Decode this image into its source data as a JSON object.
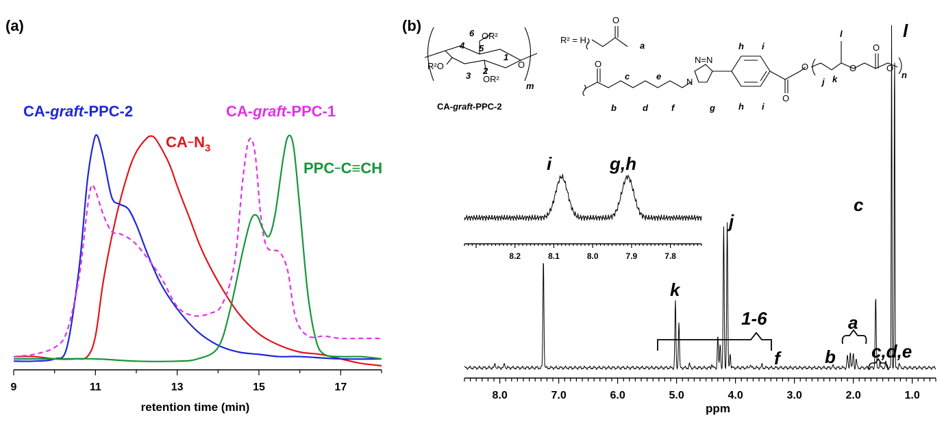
{
  "panels": {
    "a": "(a)",
    "b": "(b)"
  },
  "chart_data": [
    {
      "type": "line",
      "panel": "(a)",
      "xlabel": "retention time (min)",
      "ylabel": "",
      "xlim": [
        9,
        18
      ],
      "xticks": [
        9,
        11,
        13,
        15,
        17
      ],
      "series": [
        {
          "name": "CA-N3",
          "label_parts": [
            "CA",
            "−",
            "N",
            "3"
          ],
          "color": "#e0151b",
          "dash": "none",
          "x": [
            9.0,
            9.5,
            10.0,
            10.5,
            10.8,
            11.0,
            11.2,
            11.5,
            11.8,
            12.0,
            12.2,
            12.35,
            12.5,
            12.8,
            13.0,
            13.3,
            13.6,
            14.0,
            14.5,
            15.0,
            15.5,
            16.0,
            16.5,
            17.0,
            17.5,
            18.0
          ],
          "y": [
            0.01,
            0.01,
            0.0,
            0.0,
            0.01,
            0.1,
            0.35,
            0.62,
            0.82,
            0.91,
            0.96,
            0.98,
            0.96,
            0.86,
            0.76,
            0.62,
            0.48,
            0.34,
            0.2,
            0.11,
            0.06,
            0.03,
            0.02,
            0.0,
            -0.02,
            -0.03
          ]
        },
        {
          "name": "CA-graft-PPC-2",
          "label_parts": [
            "CA-",
            "graft",
            "-PPC-2"
          ],
          "color": "#1d27d9",
          "dash": "none",
          "x": [
            9.0,
            9.5,
            10.0,
            10.3,
            10.6,
            10.8,
            10.95,
            11.05,
            11.2,
            11.4,
            11.6,
            11.8,
            12.0,
            12.3,
            12.6,
            13.0,
            13.5,
            14.0,
            14.5,
            15.0,
            15.5,
            16.0,
            17.0,
            18.0
          ],
          "y": [
            -0.01,
            -0.01,
            0.0,
            0.05,
            0.4,
            0.78,
            0.95,
            0.98,
            0.88,
            0.71,
            0.68,
            0.66,
            0.59,
            0.45,
            0.33,
            0.22,
            0.12,
            0.06,
            0.03,
            0.02,
            0.01,
            0.01,
            0.0,
            0.0
          ]
        },
        {
          "name": "CA-graft-PPC-1",
          "label_parts": [
            "CA-",
            "graft",
            "-PPC-1"
          ],
          "color": "#e231e8",
          "dash": "dashed",
          "x": [
            9.0,
            9.5,
            10.0,
            10.3,
            10.6,
            10.8,
            10.9,
            11.0,
            11.2,
            11.4,
            11.6,
            11.9,
            12.2,
            12.6,
            13.0,
            13.4,
            13.8,
            14.1,
            14.4,
            14.6,
            14.75,
            14.9,
            15.05,
            15.2,
            15.5,
            15.7,
            15.9,
            16.2,
            16.6,
            17.0,
            17.5,
            18.0
          ],
          "y": [
            0.01,
            0.02,
            0.05,
            0.12,
            0.36,
            0.66,
            0.76,
            0.74,
            0.63,
            0.56,
            0.55,
            0.52,
            0.46,
            0.36,
            0.23,
            0.19,
            0.2,
            0.24,
            0.42,
            0.78,
            0.96,
            0.91,
            0.62,
            0.49,
            0.47,
            0.39,
            0.18,
            0.1,
            0.1,
            0.09,
            0.09,
            0.09
          ]
        },
        {
          "name": "PPC-C≡CH",
          "label_parts": [
            "PPC",
            "−",
            "C≡CH"
          ],
          "color": "#14963a",
          "dash": "none",
          "x": [
            9.0,
            10.0,
            11.0,
            12.0,
            13.0,
            13.5,
            14.0,
            14.3,
            14.6,
            14.8,
            14.95,
            15.1,
            15.25,
            15.4,
            15.6,
            15.72,
            15.85,
            16.0,
            16.2,
            16.4,
            16.6,
            17.0,
            17.5,
            18.0
          ],
          "y": [
            0.0,
            0.0,
            0.0,
            -0.01,
            -0.01,
            0.0,
            0.05,
            0.22,
            0.47,
            0.61,
            0.63,
            0.57,
            0.54,
            0.64,
            0.89,
            0.98,
            0.93,
            0.66,
            0.28,
            0.08,
            0.02,
            0.01,
            0.01,
            0.0
          ]
        }
      ]
    },
    {
      "type": "line",
      "panel": "(b)",
      "xlabel": "ppm",
      "ylabel": "",
      "xlim": [
        8.6,
        0.6
      ],
      "xticks": [
        "8.0",
        "7.0",
        "6.0",
        "5.0",
        "4.0",
        "3.0",
        "2.0",
        "1.0"
      ],
      "series": [
        {
          "name": "",
          "peaks": [
            {
              "ppm": 8.08,
              "height": 0.012
            },
            {
              "ppm": 7.92,
              "height": 0.012
            },
            {
              "ppm": 7.26,
              "height": 0.31
            },
            {
              "ppm": 5.02,
              "height": 0.19
            },
            {
              "ppm": 4.96,
              "height": 0.13
            },
            {
              "ppm": 4.78,
              "height": 0.01
            },
            {
              "ppm": 4.4,
              "height": 0.01
            },
            {
              "ppm": 4.3,
              "height": 0.09
            },
            {
              "ppm": 4.26,
              "height": 0.07
            },
            {
              "ppm": 4.2,
              "height": 0.4
            },
            {
              "ppm": 4.14,
              "height": 0.41
            },
            {
              "ppm": 4.09,
              "height": 0.04
            },
            {
              "ppm": 3.75,
              "height": 0.01
            },
            {
              "ppm": 3.55,
              "height": 0.008
            },
            {
              "ppm": 2.35,
              "height": 0.006
            },
            {
              "ppm": 2.1,
              "height": 0.035
            },
            {
              "ppm": 2.05,
              "height": 0.045
            },
            {
              "ppm": 2.0,
              "height": 0.04
            },
            {
              "ppm": 1.95,
              "height": 0.025
            },
            {
              "ppm": 1.62,
              "height": 0.2
            },
            {
              "ppm": 1.55,
              "height": 0.015
            },
            {
              "ppm": 1.45,
              "height": 0.015
            },
            {
              "ppm": 1.35,
              "height": 0.96
            },
            {
              "ppm": 1.3,
              "height": 0.93
            },
            {
              "ppm": 1.22,
              "height": 0.012
            }
          ]
        }
      ],
      "inset": {
        "xlim": [
          8.33,
          7.72
        ],
        "xticks": [
          "8.2",
          "8.1",
          "8.0",
          "7.9",
          "7.8"
        ],
        "peaks": [
          {
            "ppm": 8.08,
            "height": 1.0
          },
          {
            "ppm": 7.91,
            "height": 1.0
          }
        ],
        "labels": [
          "i",
          "g,h"
        ]
      },
      "peak_labels": [
        "l",
        "j",
        "c",
        "k",
        "1-6",
        "a",
        "b",
        "f",
        "c,d,e"
      ]
    }
  ],
  "structure": {
    "name": "CA-graft-PPC-2",
    "name_parts": [
      "CA-",
      "graft",
      "-PPC-2"
    ],
    "r2_text": "R² = H,",
    "atoms": {
      "oR6": "OR²",
      "r2o3": "R²O",
      "or2_2": "OR²",
      "o_ring": "O",
      "m": "m",
      "n": "n",
      "nnn": "N=N",
      "n1": "N"
    },
    "numbers": [
      "6",
      "4",
      "5",
      "1",
      "3",
      "2"
    ],
    "letters": [
      "a",
      "b",
      "c",
      "d",
      "e",
      "f",
      "g",
      "h",
      "h",
      "i",
      "i",
      "j",
      "k",
      "l"
    ],
    "o_labels": [
      "O",
      "O",
      "O",
      "O",
      "O",
      "O",
      "O"
    ]
  }
}
